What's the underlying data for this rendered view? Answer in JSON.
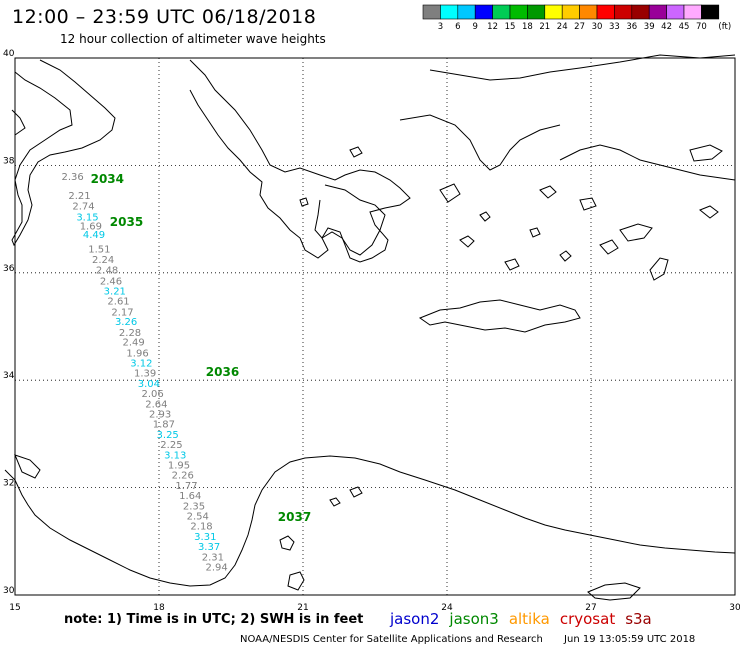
{
  "title": "12:00 – 23:59 UTC 06/18/2018",
  "subtitle": "12 hour collection of altimeter wave heights",
  "color_scale": {
    "unit": "(ft)",
    "bins": [
      {
        "label": "3",
        "color": "#7f7f7f"
      },
      {
        "label": "6",
        "color": "#00ffff"
      },
      {
        "label": "9",
        "color": "#00c8ff"
      },
      {
        "label": "12",
        "color": "#0000ff"
      },
      {
        "label": "15",
        "color": "#00cc55"
      },
      {
        "label": "18",
        "color": "#00bb00"
      },
      {
        "label": "21",
        "color": "#009900"
      },
      {
        "label": "24",
        "color": "#ffff00"
      },
      {
        "label": "27",
        "color": "#ffcc00"
      },
      {
        "label": "30",
        "color": "#ff8800"
      },
      {
        "label": "33",
        "color": "#ff0000"
      },
      {
        "label": "36",
        "color": "#cc0000"
      },
      {
        "label": "39",
        "color": "#990000"
      },
      {
        "label": "42",
        "color": "#990099"
      },
      {
        "label": "45",
        "color": "#cc66ff"
      },
      {
        "label": "70",
        "color": "#ffaaff"
      },
      {
        "label": "",
        "color": "#000000"
      }
    ]
  },
  "axes": {
    "lon": {
      "min": 15,
      "max": 30,
      "ticks": [
        15,
        18,
        21,
        24,
        27,
        30
      ]
    },
    "lat": {
      "min": 30,
      "max": 40,
      "ticks": [
        30,
        32,
        34,
        36,
        38,
        40
      ]
    }
  },
  "time_labels": [
    {
      "text": "2034",
      "lon": 16.2,
      "lat": 37.75
    },
    {
      "text": "2035",
      "lon": 16.6,
      "lat": 36.95
    },
    {
      "text": "2036",
      "lon": 18.6,
      "lat": 34.15
    },
    {
      "text": "2037",
      "lon": 20.1,
      "lat": 31.45
    }
  ],
  "swh_points": [
    {
      "v": "2.36",
      "lat": 37.8,
      "c": "gray"
    },
    {
      "v": "2.21",
      "lat": 37.45,
      "c": "gray"
    },
    {
      "v": "2.74",
      "lat": 37.25,
      "c": "gray"
    },
    {
      "v": "3.15",
      "lat": 37.05,
      "c": "cyan"
    },
    {
      "v": "1.69",
      "lat": 36.88,
      "c": "gray"
    },
    {
      "v": "4.49",
      "lat": 36.72,
      "c": "cyan"
    },
    {
      "v": "1.51",
      "lat": 36.45,
      "c": "gray"
    },
    {
      "v": "2.24",
      "lat": 36.26,
      "c": "gray"
    },
    {
      "v": "2.48",
      "lat": 36.06,
      "c": "gray"
    },
    {
      "v": "2.46",
      "lat": 35.86,
      "c": "gray"
    },
    {
      "v": "3.21",
      "lat": 35.67,
      "c": "cyan"
    },
    {
      "v": "2.61",
      "lat": 35.48,
      "c": "gray"
    },
    {
      "v": "2.17",
      "lat": 35.28,
      "c": "gray"
    },
    {
      "v": "3.26",
      "lat": 35.1,
      "c": "cyan"
    },
    {
      "v": "2.28",
      "lat": 34.9,
      "c": "gray"
    },
    {
      "v": "2.49",
      "lat": 34.72,
      "c": "gray"
    },
    {
      "v": "1.96",
      "lat": 34.52,
      "c": "gray"
    },
    {
      "v": "3.12",
      "lat": 34.33,
      "c": "cyan"
    },
    {
      "v": "1.39",
      "lat": 34.14,
      "c": "gray"
    },
    {
      "v": "3.04",
      "lat": 33.95,
      "c": "cyan"
    },
    {
      "v": "2.06",
      "lat": 33.76,
      "c": "gray"
    },
    {
      "v": "2.64",
      "lat": 33.57,
      "c": "gray"
    },
    {
      "v": "2.93",
      "lat": 33.38,
      "c": "gray"
    },
    {
      "v": "1.87",
      "lat": 33.19,
      "c": "gray"
    },
    {
      "v": "3.25",
      "lat": 33.0,
      "c": "cyan"
    },
    {
      "v": "2.25",
      "lat": 32.81,
      "c": "gray"
    },
    {
      "v": "3.13",
      "lat": 32.62,
      "c": "cyan"
    },
    {
      "v": "1.95",
      "lat": 32.43,
      "c": "gray"
    },
    {
      "v": "2.26",
      "lat": 32.24,
      "c": "gray"
    },
    {
      "v": "1.77",
      "lat": 32.05,
      "c": "gray"
    },
    {
      "v": "1.64",
      "lat": 31.86,
      "c": "gray"
    },
    {
      "v": "2.35",
      "lat": 31.67,
      "c": "gray"
    },
    {
      "v": "2.54",
      "lat": 31.48,
      "c": "gray"
    },
    {
      "v": "2.18",
      "lat": 31.29,
      "c": "gray"
    },
    {
      "v": "3.31",
      "lat": 31.1,
      "c": "cyan"
    },
    {
      "v": "3.37",
      "lat": 30.91,
      "c": "cyan"
    },
    {
      "v": "2.31",
      "lat": 30.72,
      "c": "gray"
    },
    {
      "v": "2.94",
      "lat": 30.53,
      "c": "gray"
    }
  ],
  "note": "note:  1) Time is in UTC;  2) SWH is in feet",
  "satellites": [
    {
      "name": "jason2",
      "color": "#0000cc"
    },
    {
      "name": "jason3",
      "color": "#008800"
    },
    {
      "name": "altika",
      "color": "#ff9900"
    },
    {
      "name": "cryosat",
      "color": "#cc0000"
    },
    {
      "name": "s3a",
      "color": "#990000"
    }
  ],
  "credit": "NOAA/NESDIS Center for Satellite Applications and Research",
  "timestamp": "Jun 19 13:05:59 UTC 2018"
}
